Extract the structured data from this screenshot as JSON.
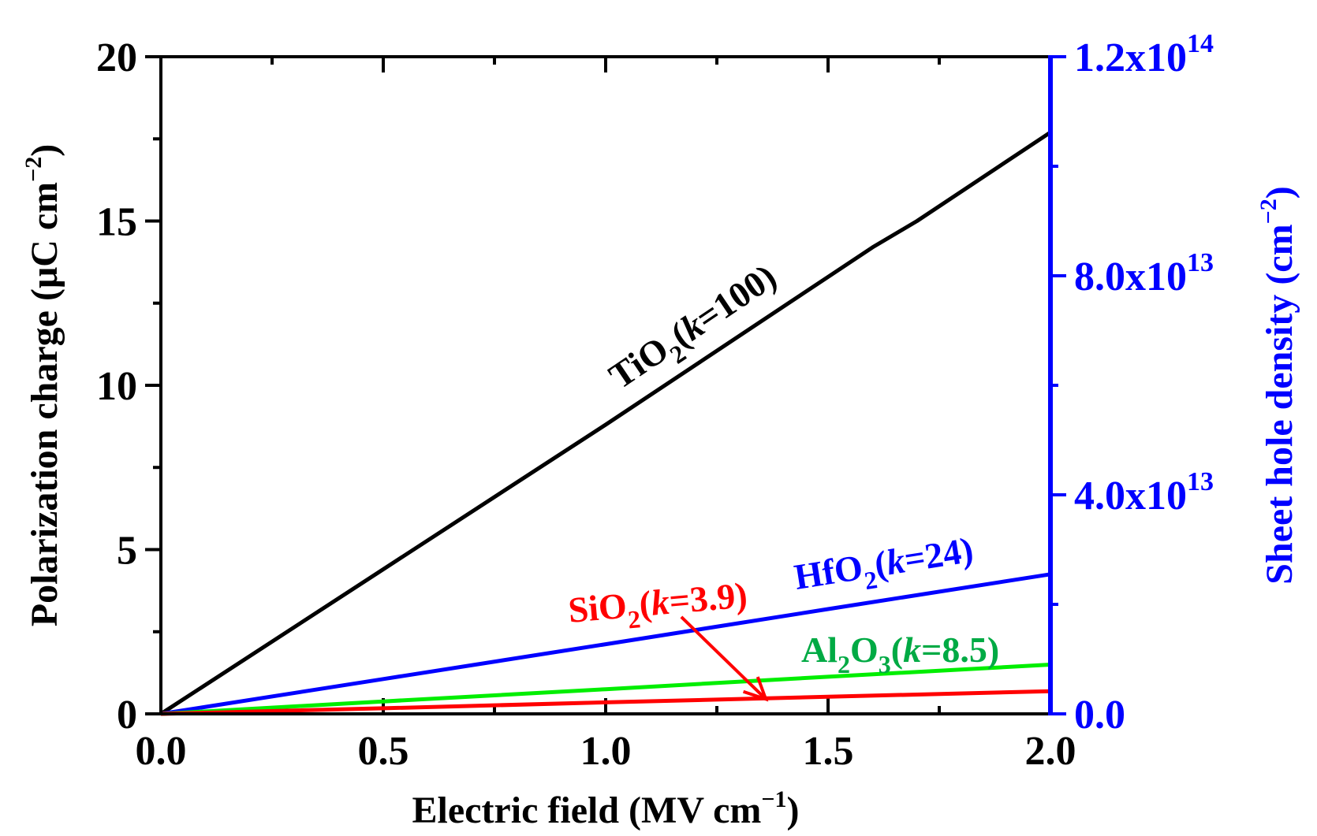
{
  "chart_data": {
    "type": "line",
    "x_axis": {
      "label": "Electric field (MV cm",
      "label_exp": "−1",
      "label_close": ")",
      "range": [
        0.0,
        2.0
      ],
      "ticks": [
        {
          "value": 0.0,
          "label": "0.0"
        },
        {
          "value": 0.5,
          "label": "0.5"
        },
        {
          "value": 1.0,
          "label": "1.0"
        },
        {
          "value": 1.5,
          "label": "1.5"
        },
        {
          "value": 2.0,
          "label": "2.0"
        }
      ],
      "minor_step": 0.25
    },
    "y_axis_left": {
      "label": "Polarization charge (μC cm",
      "label_exp": "−2",
      "label_close": ")",
      "range": [
        0,
        20
      ],
      "ticks": [
        {
          "value": 0,
          "label": "0"
        },
        {
          "value": 5,
          "label": "5"
        },
        {
          "value": 10,
          "label": "10"
        },
        {
          "value": 15,
          "label": "15"
        },
        {
          "value": 20,
          "label": "20"
        }
      ],
      "minor_step": 2.5
    },
    "y_axis_right": {
      "label": "Sheet hole density (cm",
      "label_exp": "−2",
      "label_close": ")",
      "range": [
        0,
        120000000000000.0
      ],
      "ticks": [
        {
          "value": 0,
          "mantissa": "0.0",
          "exp": ""
        },
        {
          "value": 40000000000000.0,
          "mantissa": "4.0x10",
          "exp": "13"
        },
        {
          "value": 80000000000000.0,
          "mantissa": "8.0x10",
          "exp": "13"
        },
        {
          "value": 120000000000000.0,
          "mantissa": "1.2x10",
          "exp": "14"
        }
      ],
      "minor_step": 20000000000000.0,
      "color": "#0000ff"
    },
    "series": [
      {
        "name": "TiO2 (k=100)",
        "color": "#000000",
        "x": [
          0.0,
          0.5,
          1.0,
          1.5,
          1.6,
          1.7,
          2.0
        ],
        "y": [
          0.0,
          4.4,
          8.8,
          13.3,
          14.2,
          15.0,
          17.7
        ],
        "label_parts": [
          "TiO",
          "2",
          "(",
          "k",
          "=100)"
        ]
      },
      {
        "name": "HfO2 (k=24)",
        "color": "#0000ff",
        "x": [
          0.0,
          0.5,
          1.0,
          1.5,
          2.0
        ],
        "y": [
          0.0,
          1.06,
          2.12,
          3.19,
          4.25
        ],
        "label_parts": [
          "HfO",
          "2",
          "(",
          "k",
          "=24)"
        ]
      },
      {
        "name": "Al2O3 (k=8.5)",
        "color": "#00ee00",
        "x": [
          0.0,
          0.5,
          1.0,
          1.5,
          2.0
        ],
        "y": [
          0.0,
          0.38,
          0.75,
          1.13,
          1.5
        ],
        "label_color": "#00aa44",
        "label_parts": [
          "Al",
          "2",
          "O",
          "3",
          "(",
          "k",
          "=8.5)"
        ]
      },
      {
        "name": "SiO2 (k=3.9)",
        "color": "#ff0000",
        "x": [
          0.0,
          0.5,
          1.0,
          1.5,
          2.0
        ],
        "y": [
          0.0,
          0.17,
          0.35,
          0.52,
          0.69
        ],
        "label_parts": [
          "SiO",
          "2",
          "(",
          "k",
          "=3.9)"
        ]
      }
    ],
    "annotations": [
      {
        "type": "arrow",
        "color": "#ff0000",
        "from": [
          1.17,
          2.95
        ],
        "to": [
          1.36,
          0.45
        ],
        "ref": "SiO2 (k=3.9)"
      }
    ]
  }
}
